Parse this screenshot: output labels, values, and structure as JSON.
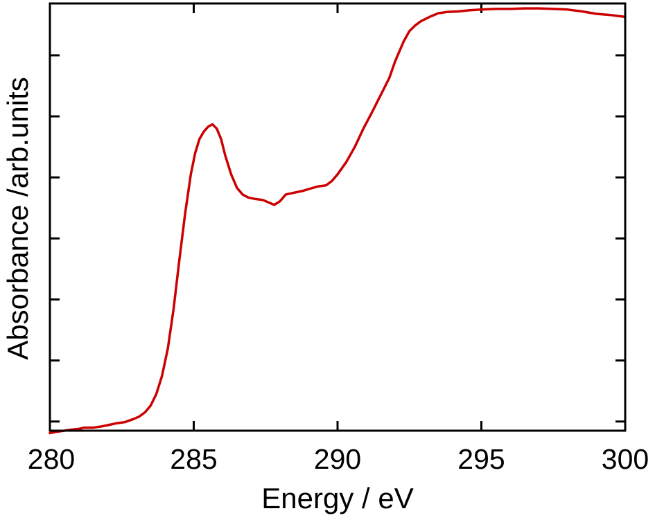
{
  "chart_data": {
    "type": "line",
    "title": "",
    "xlabel": "Energy / eV",
    "ylabel": "Absorbance /arb.units",
    "xlim": [
      280,
      300
    ],
    "ylim": [
      0,
      7
    ],
    "x_ticks": [
      280,
      285,
      290,
      295,
      300
    ],
    "x_tick_labels": [
      "280",
      "285",
      "290",
      "295",
      "300"
    ],
    "y_ticks": [
      0.15,
      1.15,
      2.15,
      3.15,
      4.15,
      5.15,
      6.15
    ],
    "y_tick_labels": [
      "",
      "",
      "",
      "",
      "",
      "",
      ""
    ],
    "grid": false,
    "legend": "none",
    "line_color": "#cc0000",
    "series": [
      {
        "values": [
          [
            280.0,
            -0.04
          ],
          [
            280.2,
            -0.02
          ],
          [
            280.5,
            0.0
          ],
          [
            280.8,
            0.02
          ],
          [
            281.0,
            0.03
          ],
          [
            281.2,
            0.05
          ],
          [
            281.5,
            0.05
          ],
          [
            281.8,
            0.07
          ],
          [
            282.0,
            0.09
          ],
          [
            282.3,
            0.12
          ],
          [
            282.6,
            0.14
          ],
          [
            282.9,
            0.19
          ],
          [
            283.1,
            0.23
          ],
          [
            283.3,
            0.3
          ],
          [
            283.5,
            0.41
          ],
          [
            283.7,
            0.6
          ],
          [
            283.9,
            0.9
          ],
          [
            284.1,
            1.35
          ],
          [
            284.3,
            2.0
          ],
          [
            284.5,
            2.8
          ],
          [
            284.7,
            3.55
          ],
          [
            284.9,
            4.2
          ],
          [
            285.05,
            4.55
          ],
          [
            285.2,
            4.78
          ],
          [
            285.35,
            4.9
          ],
          [
            285.5,
            4.98
          ],
          [
            285.65,
            5.02
          ],
          [
            285.8,
            4.95
          ],
          [
            285.95,
            4.78
          ],
          [
            286.1,
            4.5
          ],
          [
            286.3,
            4.2
          ],
          [
            286.5,
            3.98
          ],
          [
            286.7,
            3.87
          ],
          [
            286.9,
            3.82
          ],
          [
            287.1,
            3.8
          ],
          [
            287.4,
            3.78
          ],
          [
            287.6,
            3.74
          ],
          [
            287.8,
            3.7
          ],
          [
            288.0,
            3.76
          ],
          [
            288.2,
            3.87
          ],
          [
            288.5,
            3.9
          ],
          [
            288.8,
            3.93
          ],
          [
            289.0,
            3.96
          ],
          [
            289.3,
            4.0
          ],
          [
            289.6,
            4.02
          ],
          [
            289.8,
            4.09
          ],
          [
            290.0,
            4.2
          ],
          [
            290.3,
            4.4
          ],
          [
            290.6,
            4.65
          ],
          [
            290.9,
            4.95
          ],
          [
            291.2,
            5.22
          ],
          [
            291.5,
            5.5
          ],
          [
            291.8,
            5.78
          ],
          [
            292.0,
            6.05
          ],
          [
            292.3,
            6.38
          ],
          [
            292.5,
            6.55
          ],
          [
            292.7,
            6.64
          ],
          [
            292.9,
            6.71
          ],
          [
            293.2,
            6.78
          ],
          [
            293.5,
            6.84
          ],
          [
            293.8,
            6.86
          ],
          [
            294.2,
            6.87
          ],
          [
            294.6,
            6.89
          ],
          [
            295.0,
            6.9
          ],
          [
            295.5,
            6.91
          ],
          [
            296.0,
            6.91
          ],
          [
            296.5,
            6.92
          ],
          [
            297.0,
            6.92
          ],
          [
            297.5,
            6.91
          ],
          [
            298.0,
            6.9
          ],
          [
            298.5,
            6.87
          ],
          [
            299.0,
            6.83
          ],
          [
            299.5,
            6.81
          ],
          [
            300.0,
            6.78
          ]
        ]
      }
    ]
  }
}
